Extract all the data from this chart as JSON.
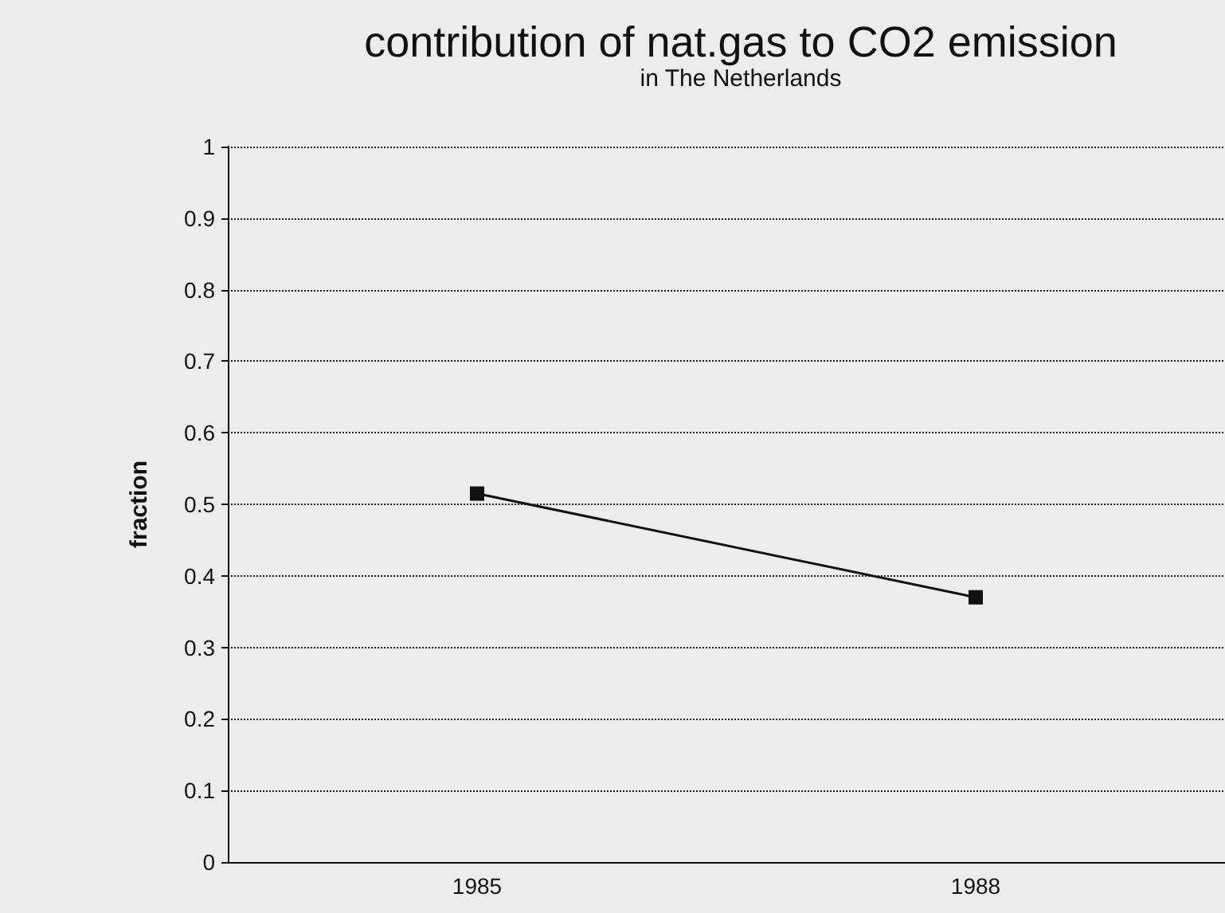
{
  "chart_data": {
    "type": "line",
    "title": "contribution of nat.gas to CO2 emission",
    "subtitle": "in The Netherlands",
    "ylabel": "fraction",
    "categories": [
      "1985",
      "1988"
    ],
    "series": [
      {
        "color": "#111111",
        "values": [
          0.515,
          0.37
        ]
      }
    ],
    "ylim": [
      0,
      1
    ],
    "yticks": [
      0,
      0.1,
      0.2,
      0.3,
      0.4,
      0.5,
      0.6,
      0.7,
      0.8,
      0.9,
      1
    ],
    "grid": "y",
    "marker": "square",
    "line_style": "solid"
  }
}
